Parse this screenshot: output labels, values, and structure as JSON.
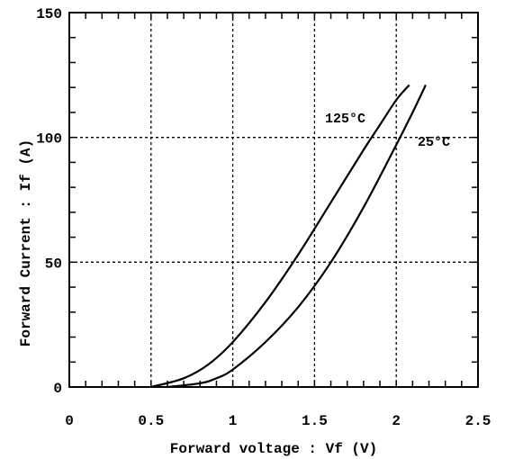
{
  "chart_data": {
    "type": "line",
    "title": "",
    "xlabel": "Forward voltage : Vf (V)",
    "ylabel": "Forward Current : If (A)",
    "xlim": [
      0,
      2.5
    ],
    "ylim": [
      0,
      150
    ],
    "x_ticks": [
      0,
      0.5,
      1,
      1.5,
      2,
      2.5
    ],
    "x_tick_labels": [
      "0",
      "0.5",
      "1",
      "1.5",
      "2",
      "2.5"
    ],
    "y_ticks": [
      0,
      50,
      100,
      150
    ],
    "y_tick_labels": [
      "0",
      "50",
      "100",
      "150"
    ],
    "grid": true,
    "legend": "none (curves labeled directly)",
    "series": [
      {
        "name": "125°C",
        "x": [
          0.5,
          0.7,
          0.85,
          1.0,
          1.2,
          1.4,
          1.6,
          1.8,
          1.9,
          2.0,
          2.08
        ],
        "y": [
          0,
          3.5,
          9,
          18,
          34,
          53,
          74,
          95,
          105,
          115,
          121
        ]
      },
      {
        "name": "25°C",
        "x": [
          0.6,
          0.8,
          0.9,
          1.0,
          1.2,
          1.4,
          1.6,
          1.8,
          2.0,
          2.1,
          2.18
        ],
        "y": [
          0,
          1.5,
          3.5,
          7,
          18,
          32,
          50,
          72,
          97,
          110,
          121
        ]
      }
    ]
  }
}
